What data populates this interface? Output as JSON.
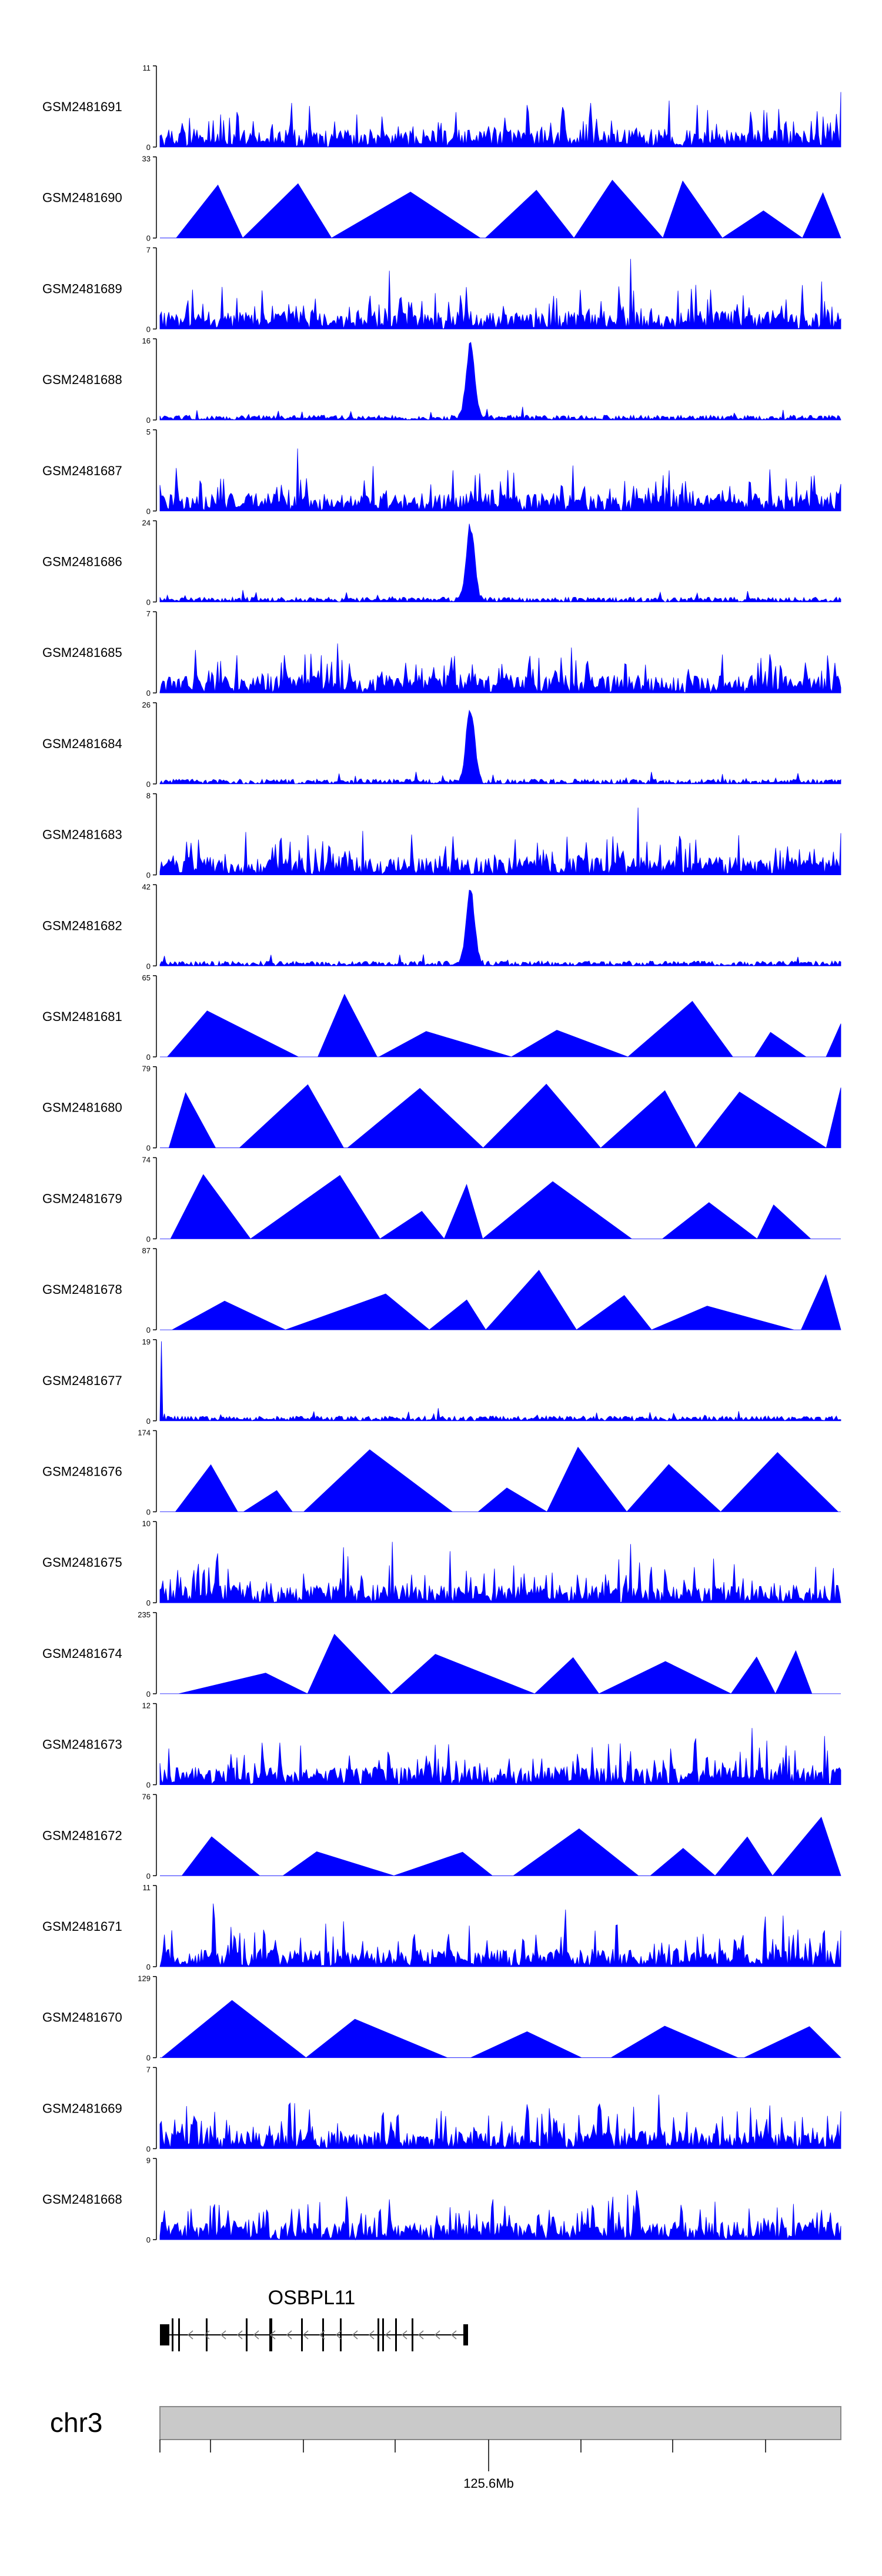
{
  "colors": {
    "signal": "#0000ff",
    "axis": "#000000",
    "ideogram": "#c9c9c9",
    "ideogram_border": "#888888"
  },
  "chart_data": {
    "type": "area",
    "description": "ChIP-seq style coverage tracks around the OSBPL11 locus",
    "tracks": [
      {
        "name": "GSM2481691",
        "max": 11,
        "min": 0,
        "shape": "noise"
      },
      {
        "name": "GSM2481690",
        "max": 33,
        "min": 0,
        "shape": "tri"
      },
      {
        "name": "GSM2481689",
        "max": 7,
        "min": 0,
        "shape": "noise"
      },
      {
        "name": "GSM2481688",
        "max": 16,
        "min": 0,
        "shape": "peak"
      },
      {
        "name": "GSM2481687",
        "max": 5,
        "min": 0,
        "shape": "noise"
      },
      {
        "name": "GSM2481686",
        "max": 24,
        "min": 0,
        "shape": "peak"
      },
      {
        "name": "GSM2481685",
        "max": 7,
        "min": 0,
        "shape": "noise"
      },
      {
        "name": "GSM2481684",
        "max": 26,
        "min": 0,
        "shape": "peak"
      },
      {
        "name": "GSM2481683",
        "max": 8,
        "min": 0,
        "shape": "noise"
      },
      {
        "name": "GSM2481682",
        "max": 42,
        "min": 0,
        "shape": "peak"
      },
      {
        "name": "GSM2481681",
        "max": 65,
        "min": 0,
        "shape": "tri"
      },
      {
        "name": "GSM2481680",
        "max": 79,
        "min": 0,
        "shape": "tri"
      },
      {
        "name": "GSM2481679",
        "max": 74,
        "min": 0,
        "shape": "tri"
      },
      {
        "name": "GSM2481678",
        "max": 87,
        "min": 0,
        "shape": "tri"
      },
      {
        "name": "GSM2481677",
        "max": 19,
        "min": 0,
        "shape": "spike-left"
      },
      {
        "name": "GSM2481676",
        "max": 174,
        "min": 0,
        "shape": "tri"
      },
      {
        "name": "GSM2481675",
        "max": 10,
        "min": 0,
        "shape": "noise"
      },
      {
        "name": "GSM2481674",
        "max": 235,
        "min": 0,
        "shape": "tri"
      },
      {
        "name": "GSM2481673",
        "max": 12,
        "min": 0,
        "shape": "noise"
      },
      {
        "name": "GSM2481672",
        "max": 76,
        "min": 0,
        "shape": "tri"
      },
      {
        "name": "GSM2481671",
        "max": 11,
        "min": 0,
        "shape": "noise"
      },
      {
        "name": "GSM2481670",
        "max": 129,
        "min": 0,
        "shape": "tri"
      },
      {
        "name": "GSM2481669",
        "max": 7,
        "min": 0,
        "shape": "noise"
      },
      {
        "name": "GSM2481668",
        "max": 9,
        "min": 0,
        "shape": "noise"
      }
    ],
    "gene": {
      "name": "OSBPL11",
      "strand": "-"
    },
    "chromosome": "chr3",
    "axis_label": "125.6Mb"
  }
}
